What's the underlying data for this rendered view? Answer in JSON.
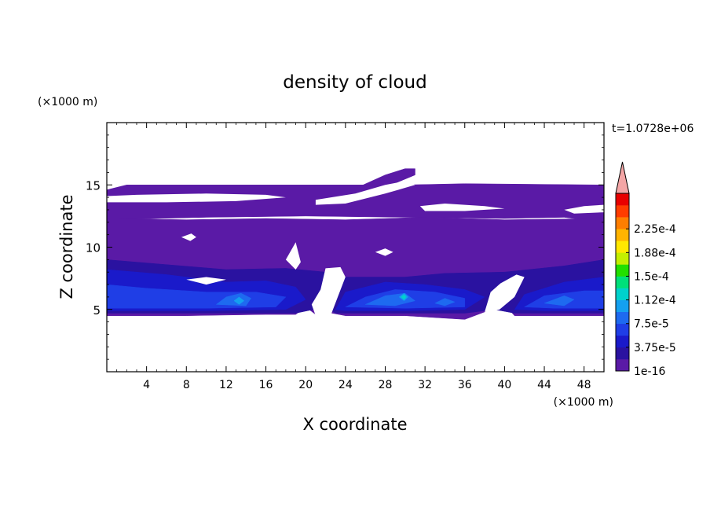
{
  "chart_data": {
    "type": "heatmap",
    "title": "density of cloud",
    "xlabel": "X coordinate",
    "ylabel": "Z coordinate",
    "x_unit": "(×1000 m)",
    "y_unit": "(×1000 m)",
    "time_label": "t=1.0728e+06",
    "xlim": [
      0,
      50
    ],
    "ylim": [
      0,
      20
    ],
    "x_ticks": [
      4,
      8,
      12,
      16,
      20,
      24,
      28,
      32,
      36,
      40,
      44,
      48
    ],
    "y_ticks": [
      5,
      10,
      15
    ],
    "colorbar": {
      "labels": [
        "1e-16",
        "3.75e-5",
        "7.5e-5",
        "1.12e-4",
        "1.5e-4",
        "1.88e-4",
        "2.25e-4"
      ],
      "label_levels": [
        1e-16,
        3.75e-05,
        7.5e-05,
        0.000112,
        0.00015,
        0.000188,
        0.000225
      ],
      "colors": [
        "#5a1aa6",
        "#2a12a0",
        "#1a1aca",
        "#1f3ee6",
        "#1e6af0",
        "#14a0f0",
        "#00d2cc",
        "#00e07a",
        "#22e000",
        "#c4ef00",
        "#ffe800",
        "#ffb400",
        "#ff7e00",
        "#ff3c00",
        "#e80000"
      ],
      "extend_color": "#f4a6a6"
    },
    "regions": [
      {
        "level": 0,
        "polygon": [
          [
            1,
            14.8
          ],
          [
            2,
            15
          ],
          [
            30,
            15
          ],
          [
            36,
            15.1
          ],
          [
            50,
            15
          ],
          [
            50,
            12
          ],
          [
            46,
            12.4
          ],
          [
            40,
            12.3
          ],
          [
            30,
            12.4
          ],
          [
            20,
            12.5
          ],
          [
            10,
            12.4
          ],
          [
            0,
            12.2
          ],
          [
            0,
            14.6
          ]
        ]
      },
      {
        "level": 0,
        "polygon": [
          [
            23,
            14
          ],
          [
            28,
            15.8
          ],
          [
            30,
            16.3
          ],
          [
            31,
            16.3
          ],
          [
            31,
            15.8
          ],
          [
            28,
            14.8
          ],
          [
            24,
            13.8
          ]
        ]
      },
      {
        "level": 0,
        "polygon": [
          [
            0,
            12.3
          ],
          [
            8,
            12.2
          ],
          [
            16,
            12.3
          ],
          [
            24,
            12.2
          ],
          [
            32,
            12.4
          ],
          [
            40,
            12.2
          ],
          [
            50,
            12.3
          ],
          [
            50,
            4.5
          ],
          [
            41,
            4.5
          ],
          [
            40,
            5.4
          ],
          [
            38,
            4.8
          ],
          [
            36,
            4.2
          ],
          [
            30,
            4.5
          ],
          [
            24,
            4.5
          ],
          [
            22,
            4.8
          ],
          [
            21,
            4.6
          ],
          [
            20,
            5.2
          ],
          [
            19,
            4.6
          ],
          [
            16,
            4.6
          ],
          [
            8,
            4.5
          ],
          [
            0,
            4.5
          ]
        ]
      },
      {
        "level": 1,
        "polygon": [
          [
            0,
            9
          ],
          [
            6,
            8.6
          ],
          [
            12,
            8.2
          ],
          [
            18,
            8.3
          ],
          [
            22,
            8
          ],
          [
            24,
            7.6
          ],
          [
            30,
            7.6
          ],
          [
            34,
            7.9
          ],
          [
            40,
            8
          ],
          [
            46,
            8.5
          ],
          [
            50,
            9
          ],
          [
            50,
            4.7
          ],
          [
            41,
            4.7
          ],
          [
            39,
            5
          ],
          [
            36,
            4.7
          ],
          [
            30,
            4.7
          ],
          [
            23,
            4.7
          ],
          [
            22,
            5.2
          ],
          [
            19,
            4.7
          ],
          [
            16,
            4.7
          ],
          [
            8,
            4.7
          ],
          [
            0,
            4.7
          ]
        ]
      },
      {
        "level": 2,
        "polygon": [
          [
            0,
            8.2
          ],
          [
            6,
            7.8
          ],
          [
            12,
            7.2
          ],
          [
            16,
            7.3
          ],
          [
            19,
            6.8
          ],
          [
            20,
            5.8
          ],
          [
            18,
            5
          ],
          [
            10,
            4.9
          ],
          [
            0,
            4.9
          ]
        ]
      },
      {
        "level": 2,
        "polygon": [
          [
            23,
            5
          ],
          [
            24,
            6.4
          ],
          [
            28,
            7.2
          ],
          [
            32,
            7
          ],
          [
            36,
            6.6
          ],
          [
            38,
            6
          ],
          [
            36,
            5
          ],
          [
            30,
            4.9
          ],
          [
            24,
            4.9
          ]
        ]
      },
      {
        "level": 2,
        "polygon": [
          [
            41,
            5
          ],
          [
            42,
            6.2
          ],
          [
            46,
            7.2
          ],
          [
            50,
            7.6
          ],
          [
            50,
            4.9
          ],
          [
            44,
            4.9
          ]
        ]
      },
      {
        "level": 3,
        "polygon": [
          [
            0,
            7
          ],
          [
            4,
            6.7
          ],
          [
            10,
            6.4
          ],
          [
            15,
            6.4
          ],
          [
            18,
            6
          ],
          [
            17,
            5.2
          ],
          [
            10,
            5.1
          ],
          [
            0,
            5.1
          ]
        ]
      },
      {
        "level": 3,
        "polygon": [
          [
            24,
            5.2
          ],
          [
            26,
            6
          ],
          [
            29,
            6.6
          ],
          [
            33,
            6.4
          ],
          [
            36,
            5.9
          ],
          [
            36,
            5.2
          ],
          [
            30,
            5.1
          ]
        ]
      },
      {
        "level": 3,
        "polygon": [
          [
            42,
            5.2
          ],
          [
            44,
            6.1
          ],
          [
            48,
            6.5
          ],
          [
            50,
            6.5
          ],
          [
            50,
            5.1
          ],
          [
            45,
            5.1
          ]
        ]
      },
      {
        "level": 4,
        "polygon": [
          [
            11,
            5.4
          ],
          [
            12,
            6
          ],
          [
            13.5,
            6.3
          ],
          [
            14.5,
            5.9
          ],
          [
            14,
            5.3
          ]
        ]
      },
      {
        "level": 4,
        "polygon": [
          [
            26,
            5.4
          ],
          [
            28,
            6.1
          ],
          [
            30,
            6.3
          ],
          [
            31,
            5.7
          ],
          [
            29,
            5.3
          ]
        ]
      },
      {
        "level": 4,
        "polygon": [
          [
            33,
            5.5
          ],
          [
            34,
            5.9
          ],
          [
            35,
            5.6
          ],
          [
            34,
            5.3
          ]
        ]
      },
      {
        "level": 4,
        "polygon": [
          [
            44,
            5.5
          ],
          [
            46,
            6.1
          ],
          [
            47,
            5.8
          ],
          [
            46,
            5.3
          ]
        ]
      },
      {
        "level": 5,
        "polygon": [
          [
            12.8,
            5.7
          ],
          [
            13.3,
            6
          ],
          [
            13.8,
            5.7
          ],
          [
            13.3,
            5.4
          ]
        ]
      },
      {
        "level": 5,
        "polygon": [
          [
            29.4,
            6
          ],
          [
            29.9,
            6.3
          ],
          [
            30.3,
            6
          ],
          [
            29.9,
            5.7
          ]
        ]
      },
      {
        "level": 6,
        "polygon": [
          [
            29.6,
            6
          ],
          [
            29.9,
            6.2
          ],
          [
            30.1,
            6
          ],
          [
            29.9,
            5.8
          ]
        ]
      }
    ],
    "holes": [
      {
        "polygon": [
          [
            0,
            14.1
          ],
          [
            3,
            14.2
          ],
          [
            10,
            14.3
          ],
          [
            16,
            14.2
          ],
          [
            18,
            14
          ],
          [
            13,
            13.7
          ],
          [
            6,
            13.6
          ],
          [
            0,
            13.6
          ]
        ]
      },
      {
        "polygon": [
          [
            21,
            13.8
          ],
          [
            25,
            14.3
          ],
          [
            28,
            15
          ],
          [
            30,
            15.3
          ],
          [
            31,
            15
          ],
          [
            28,
            14.3
          ],
          [
            24,
            13.5
          ],
          [
            21,
            13.4
          ]
        ]
      },
      {
        "polygon": [
          [
            31.5,
            13.3
          ],
          [
            34,
            13.5
          ],
          [
            38,
            13.3
          ],
          [
            40,
            13.1
          ],
          [
            36,
            12.9
          ],
          [
            32,
            12.9
          ]
        ]
      },
      {
        "polygon": [
          [
            46,
            13
          ],
          [
            48,
            13.3
          ],
          [
            50,
            13.4
          ],
          [
            50,
            12.8
          ],
          [
            47,
            12.7
          ]
        ]
      },
      {
        "polygon": [
          [
            7.5,
            10.8
          ],
          [
            8.5,
            11.1
          ],
          [
            9,
            10.8
          ],
          [
            8.4,
            10.5
          ]
        ]
      },
      {
        "polygon": [
          [
            27,
            9.6
          ],
          [
            28,
            9.9
          ],
          [
            28.8,
            9.6
          ],
          [
            28,
            9.3
          ]
        ]
      },
      {
        "polygon": [
          [
            18,
            9
          ],
          [
            19,
            10.4
          ],
          [
            19.5,
            8.8
          ],
          [
            19,
            8.2
          ]
        ]
      },
      {
        "polygon": [
          [
            8,
            7.4
          ],
          [
            10,
            7.6
          ],
          [
            12,
            7.4
          ],
          [
            10,
            7
          ]
        ]
      },
      {
        "polygon": [
          [
            21,
            4.5
          ],
          [
            22.5,
            4.5
          ],
          [
            24,
            7.6
          ],
          [
            23.5,
            8.4
          ],
          [
            22,
            8.3
          ],
          [
            21.5,
            6.6
          ],
          [
            20.6,
            5.4
          ]
        ]
      },
      {
        "polygon": [
          [
            38,
            4.8
          ],
          [
            39.5,
            5
          ],
          [
            41,
            6
          ],
          [
            42,
            7.6
          ],
          [
            41.2,
            7.8
          ],
          [
            39.6,
            7.1
          ],
          [
            38.6,
            6.4
          ]
        ]
      }
    ]
  }
}
